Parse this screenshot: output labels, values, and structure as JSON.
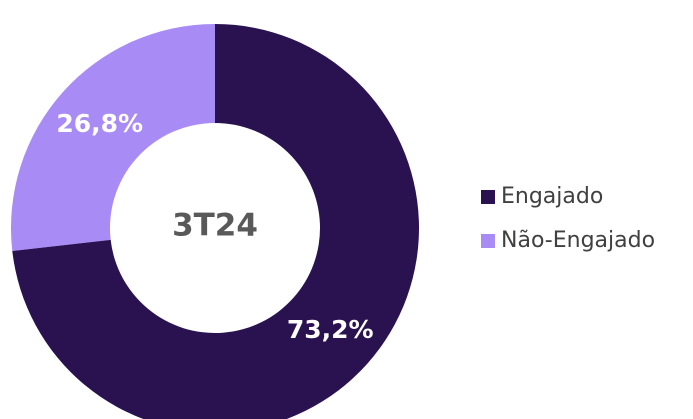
{
  "chart_data": {
    "type": "donut",
    "center_label": "3T24",
    "categories": [
      "Engajado",
      "Não-Engajado"
    ],
    "values": [
      73.2,
      26.8
    ],
    "value_labels": [
      "73,2%",
      "26,8%"
    ],
    "colors": [
      "#2a1250",
      "#a98bf5"
    ],
    "legend": "right"
  }
}
